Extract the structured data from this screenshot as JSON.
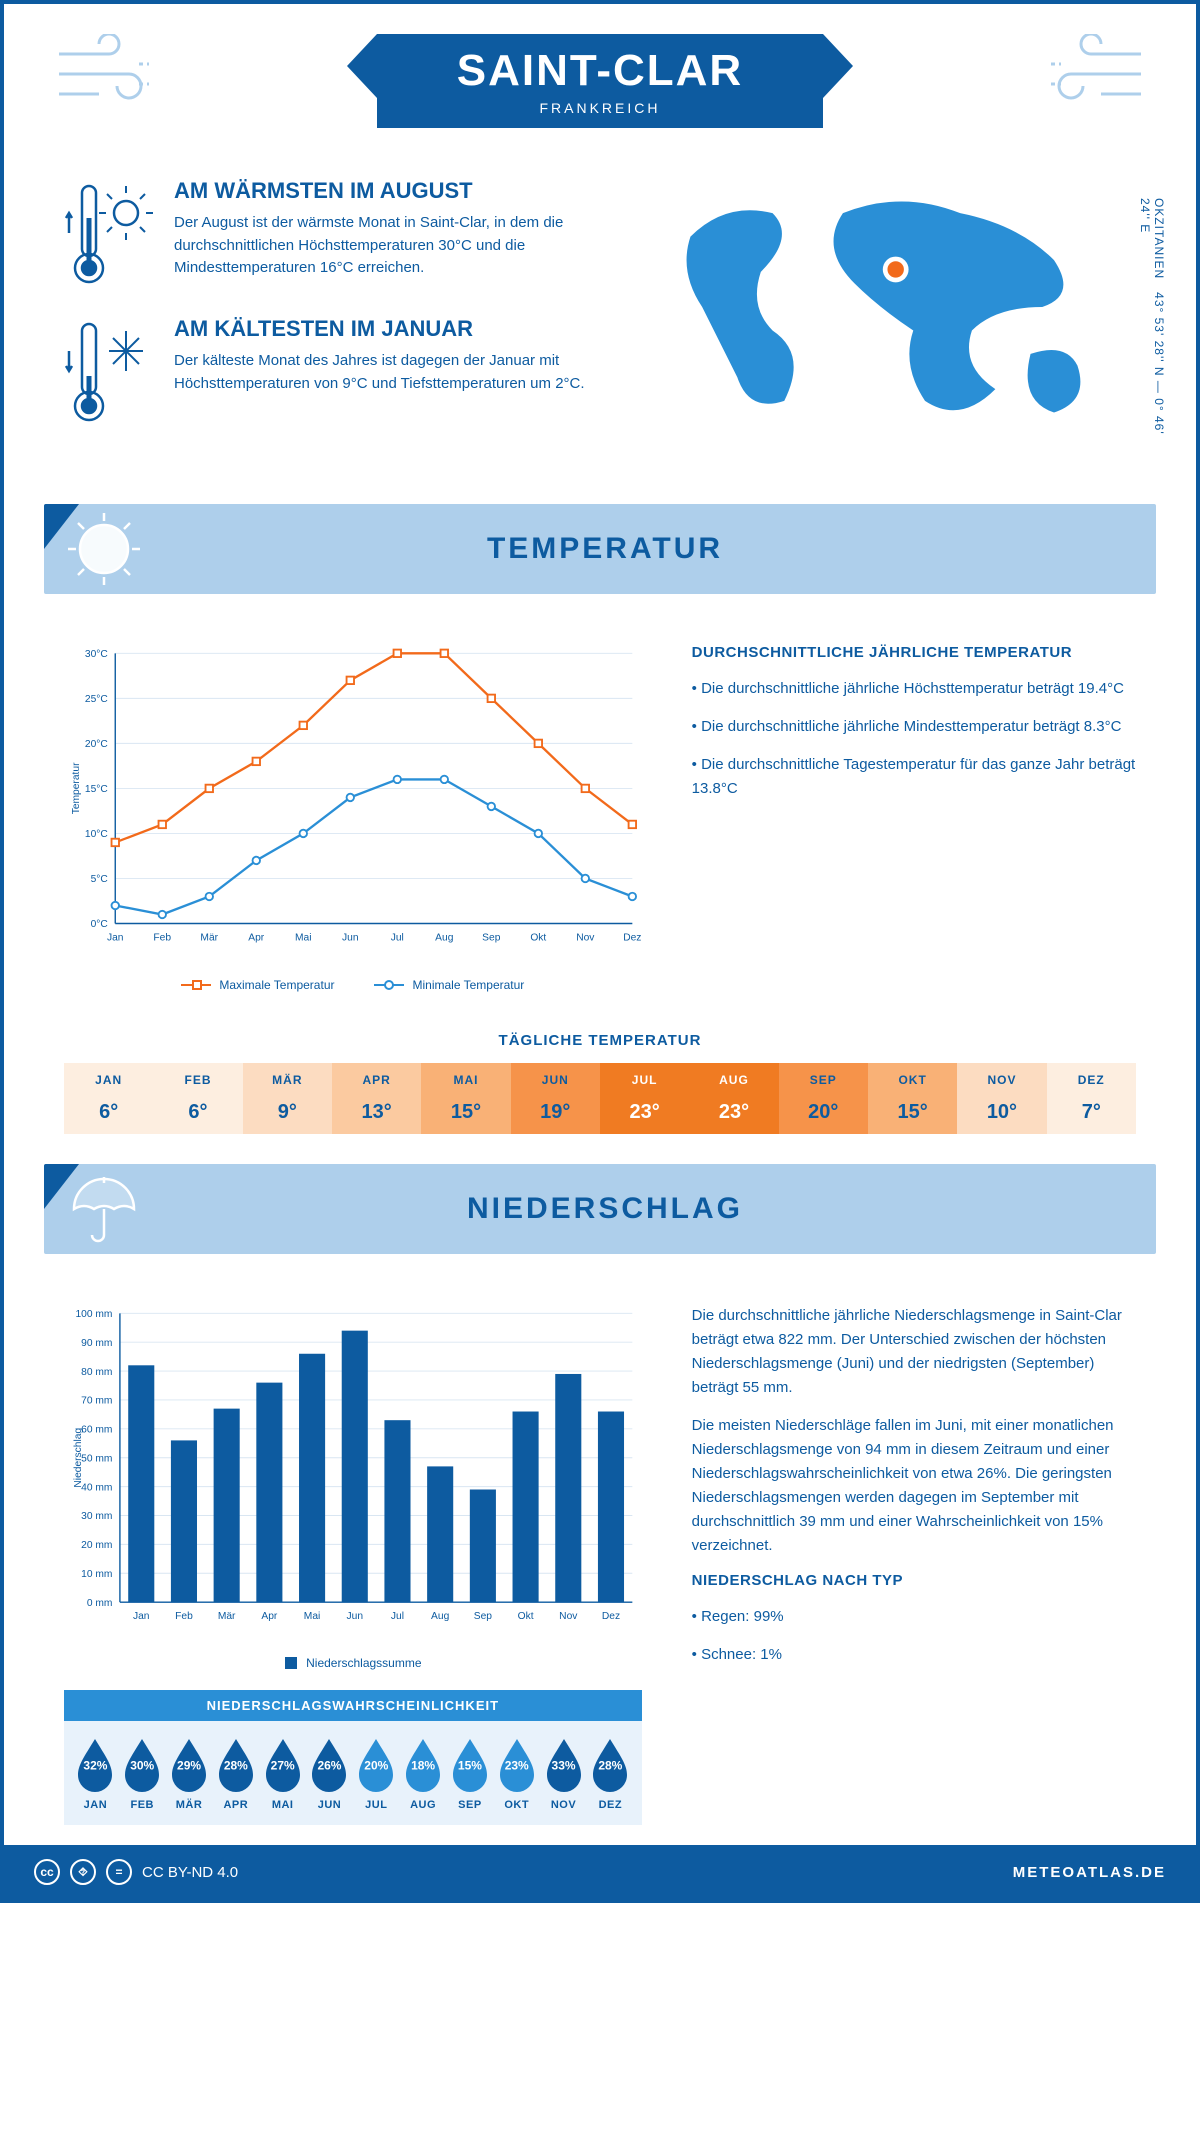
{
  "header": {
    "title": "SAINT-CLAR",
    "subtitle": "FRANKREICH"
  },
  "coords": {
    "line1": "43° 53' 28'' N — 0° 46' 24'' E",
    "region": "OKZITANIEN"
  },
  "colors": {
    "primary": "#0d5ba0",
    "light": "#aecfeb",
    "accent": "#2a8fd6",
    "orange": "#f26a1b"
  },
  "warm": {
    "title": "AM WÄRMSTEN IM AUGUST",
    "text": "Der August ist der wärmste Monat in Saint-Clar, in dem die durchschnittlichen Höchsttemperaturen 30°C und die Mindesttemperaturen 16°C erreichen."
  },
  "cold": {
    "title": "AM KÄLTESTEN IM JANUAR",
    "text": "Der kälteste Monat des Jahres ist dagegen der Januar mit Höchsttemperaturen von 9°C und Tiefsttemperaturen um 2°C."
  },
  "temp_section": {
    "title": "TEMPERATUR"
  },
  "temp_chart": {
    "months": [
      "Jan",
      "Feb",
      "Mär",
      "Apr",
      "Mai",
      "Jun",
      "Jul",
      "Aug",
      "Sep",
      "Okt",
      "Nov",
      "Dez"
    ],
    "max": [
      9,
      11,
      15,
      18,
      22,
      27,
      30,
      30,
      25,
      20,
      15,
      11
    ],
    "min": [
      2,
      1,
      3,
      7,
      10,
      14,
      16,
      16,
      13,
      10,
      5,
      3
    ],
    "ylim": [
      0,
      30
    ],
    "ytick_step": 5,
    "ylabel": "Temperatur",
    "max_color": "#f26a1b",
    "min_color": "#2a8fd6",
    "legend_max": "Maximale Temperatur",
    "legend_min": "Minimale Temperatur"
  },
  "temp_text": {
    "title": "DURCHSCHNITTLICHE JÄHRLICHE TEMPERATUR",
    "p1": "• Die durchschnittliche jährliche Höchsttemperatur beträgt 19.4°C",
    "p2": "• Die durchschnittliche jährliche Mindesttemperatur beträgt 8.3°C",
    "p3": "• Die durchschnittliche Tagestemperatur für das ganze Jahr beträgt 13.8°C"
  },
  "daily": {
    "title": "TÄGLICHE TEMPERATUR",
    "cells": [
      {
        "m": "JAN",
        "v": "6°",
        "bg": "#fdeee0",
        "fg": "#0d5ba0"
      },
      {
        "m": "FEB",
        "v": "6°",
        "bg": "#fdeee0",
        "fg": "#0d5ba0"
      },
      {
        "m": "MÄR",
        "v": "9°",
        "bg": "#fcdcc1",
        "fg": "#0d5ba0"
      },
      {
        "m": "APR",
        "v": "13°",
        "bg": "#fbcaa0",
        "fg": "#0d5ba0"
      },
      {
        "m": "MAI",
        "v": "15°",
        "bg": "#f9b176",
        "fg": "#0d5ba0"
      },
      {
        "m": "JUN",
        "v": "19°",
        "bg": "#f6934a",
        "fg": "#0d5ba0"
      },
      {
        "m": "JUL",
        "v": "23°",
        "bg": "#f07b22",
        "fg": "#fff"
      },
      {
        "m": "AUG",
        "v": "23°",
        "bg": "#f07b22",
        "fg": "#fff"
      },
      {
        "m": "SEP",
        "v": "20°",
        "bg": "#f6934a",
        "fg": "#0d5ba0"
      },
      {
        "m": "OKT",
        "v": "15°",
        "bg": "#f9b176",
        "fg": "#0d5ba0"
      },
      {
        "m": "NOV",
        "v": "10°",
        "bg": "#fcdcc1",
        "fg": "#0d5ba0"
      },
      {
        "m": "DEZ",
        "v": "7°",
        "bg": "#fdeee0",
        "fg": "#0d5ba0"
      }
    ]
  },
  "precip_section": {
    "title": "NIEDERSCHLAG"
  },
  "precip_chart": {
    "months": [
      "Jan",
      "Feb",
      "Mär",
      "Apr",
      "Mai",
      "Jun",
      "Jul",
      "Aug",
      "Sep",
      "Okt",
      "Nov",
      "Dez"
    ],
    "values": [
      82,
      56,
      67,
      76,
      86,
      94,
      63,
      47,
      39,
      66,
      79,
      66
    ],
    "ylim": [
      0,
      100
    ],
    "ytick_step": 10,
    "ylabel": "Niederschlag",
    "bar_color": "#0d5ba0",
    "legend": "Niederschlagssumme"
  },
  "precip_text": {
    "p1": "Die durchschnittliche jährliche Niederschlagsmenge in Saint-Clar beträgt etwa 822 mm. Der Unterschied zwischen der höchsten Niederschlagsmenge (Juni) und der niedrigsten (September) beträgt 55 mm.",
    "p2": "Die meisten Niederschläge fallen im Juni, mit einer monatlichen Niederschlagsmenge von 94 mm in diesem Zeitraum und einer Niederschlagswahrscheinlichkeit von etwa 26%. Die geringsten Niederschlagsmengen werden dagegen im September mit durchschnittlich 39 mm und einer Wahrscheinlichkeit von 15% verzeichnet.",
    "h": "NIEDERSCHLAG NACH TYP",
    "b1": "• Regen: 99%",
    "b2": "• Schnee: 1%"
  },
  "prob": {
    "title": "NIEDERSCHLAGSWAHRSCHEINLICHKEIT",
    "cells": [
      {
        "m": "JAN",
        "v": "32%",
        "c": "#0d5ba0"
      },
      {
        "m": "FEB",
        "v": "30%",
        "c": "#0d5ba0"
      },
      {
        "m": "MÄR",
        "v": "29%",
        "c": "#0d5ba0"
      },
      {
        "m": "APR",
        "v": "28%",
        "c": "#0d5ba0"
      },
      {
        "m": "MAI",
        "v": "27%",
        "c": "#0d5ba0"
      },
      {
        "m": "JUN",
        "v": "26%",
        "c": "#0d5ba0"
      },
      {
        "m": "JUL",
        "v": "20%",
        "c": "#2a8fd6"
      },
      {
        "m": "AUG",
        "v": "18%",
        "c": "#2a8fd6"
      },
      {
        "m": "SEP",
        "v": "15%",
        "c": "#2a8fd6"
      },
      {
        "m": "OKT",
        "v": "23%",
        "c": "#2a8fd6"
      },
      {
        "m": "NOV",
        "v": "33%",
        "c": "#0d5ba0"
      },
      {
        "m": "DEZ",
        "v": "28%",
        "c": "#0d5ba0"
      }
    ]
  },
  "footer": {
    "license": "CC BY-ND 4.0",
    "brand": "METEOATLAS.DE"
  }
}
